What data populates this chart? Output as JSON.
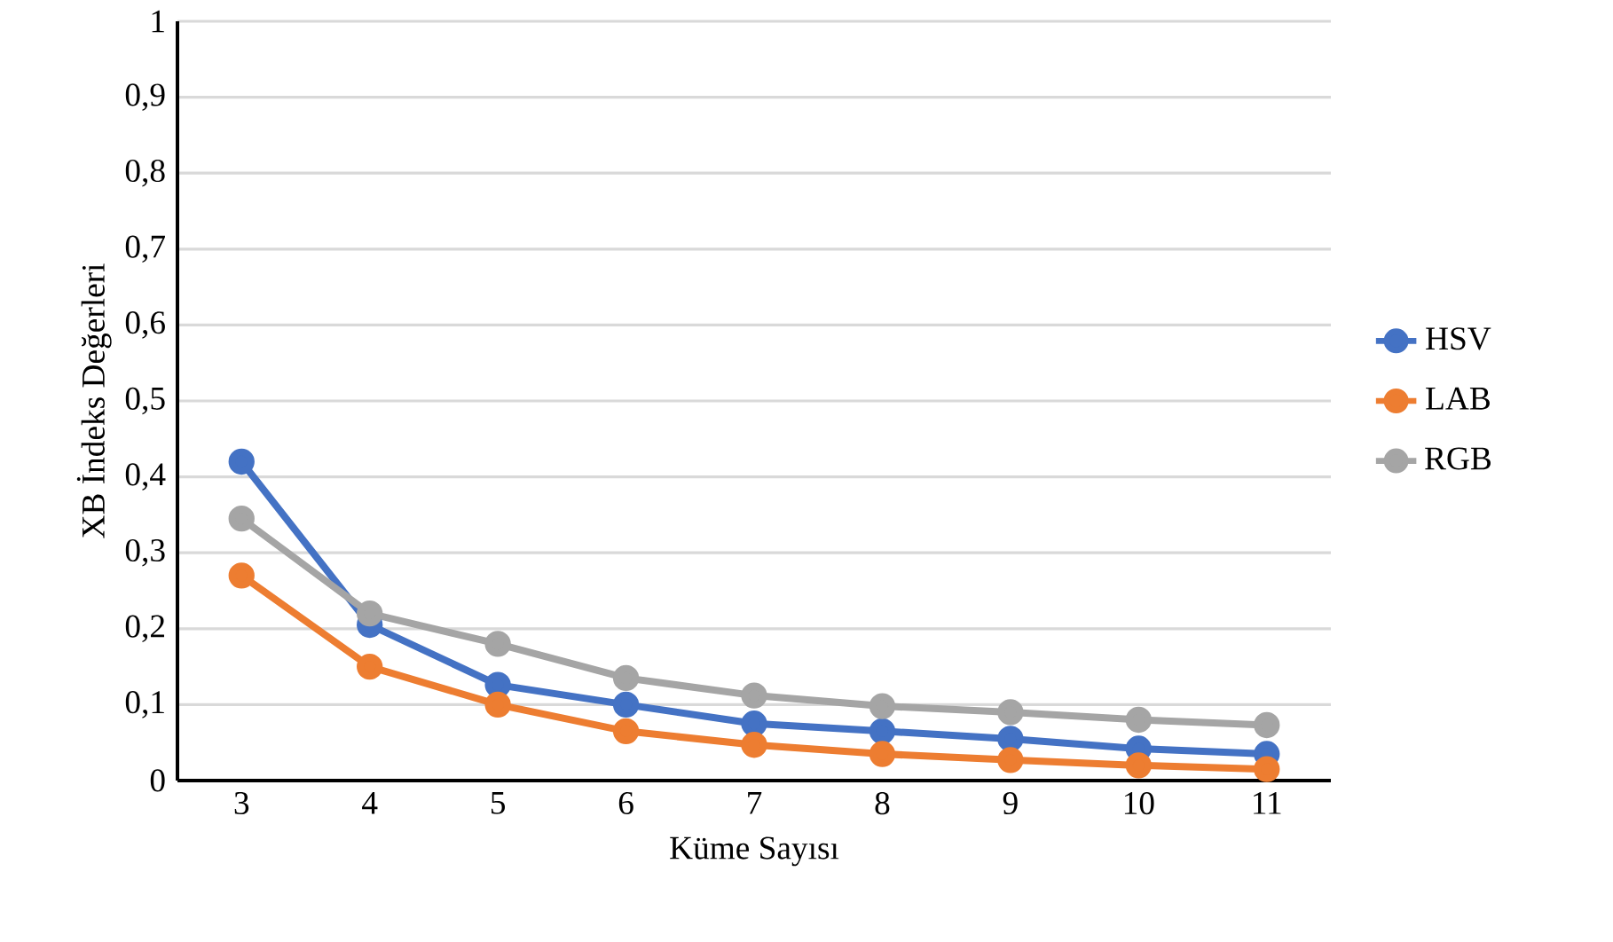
{
  "chart_data": {
    "type": "line",
    "xlabel": "Küme Sayısı",
    "ylabel": "XB İndeks Değerleri",
    "categories": [
      "3",
      "4",
      "5",
      "6",
      "7",
      "8",
      "9",
      "10",
      "11"
    ],
    "series": [
      {
        "name": "HSV",
        "color": "#4472c4",
        "values": [
          0.42,
          0.205,
          0.126,
          0.1,
          0.075,
          0.065,
          0.055,
          0.042,
          0.035
        ]
      },
      {
        "name": "LAB",
        "color": "#ed7d31",
        "values": [
          0.27,
          0.15,
          0.1,
          0.065,
          0.047,
          0.035,
          0.027,
          0.02,
          0.015
        ]
      },
      {
        "name": "RGB",
        "color": "#a5a5a5",
        "values": [
          0.345,
          0.22,
          0.18,
          0.135,
          0.112,
          0.098,
          0.09,
          0.08,
          0.073
        ]
      }
    ],
    "ylim": [
      0,
      1
    ],
    "yticks": [
      0,
      {
        "value": 0.1,
        "label": "0,1"
      },
      {
        "value": 0.2,
        "label": "0,2"
      },
      {
        "value": 0.3,
        "label": "0,3"
      },
      {
        "value": 0.4,
        "label": "0,4"
      },
      {
        "value": 0.5,
        "label": "0,5"
      },
      {
        "value": 0.6,
        "label": "0,6"
      },
      {
        "value": 0.7,
        "label": "0,7"
      },
      {
        "value": 0.8,
        "label": "0,8"
      },
      {
        "value": 0.9,
        "label": "0,9"
      },
      1
    ],
    "grid": "y",
    "legend": "right",
    "marker": "circle",
    "line_style": "solid"
  }
}
